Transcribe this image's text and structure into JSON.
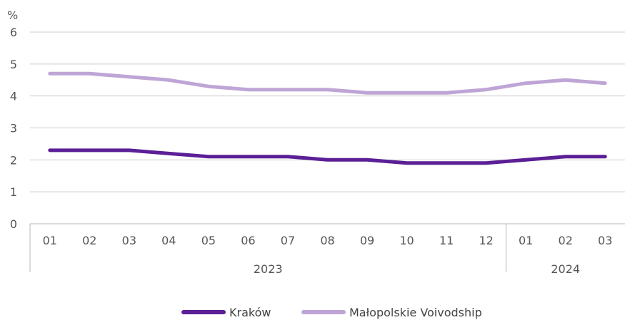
{
  "chart_data": {
    "type": "line",
    "unit_label": "%",
    "ylim": [
      0,
      6
    ],
    "yticks": [
      "0",
      "1",
      "2",
      "3",
      "4",
      "5",
      "6"
    ],
    "categories": [
      "01",
      "02",
      "03",
      "04",
      "05",
      "06",
      "07",
      "08",
      "09",
      "10",
      "11",
      "12",
      "01",
      "02",
      "03"
    ],
    "groups": [
      {
        "label": "2023",
        "count": 12
      },
      {
        "label": "2024",
        "count": 3
      }
    ],
    "grid": true,
    "legend_position": "bottom",
    "series": [
      {
        "name": "Kraków",
        "color": "#5b1f96",
        "values": [
          2.3,
          2.3,
          2.3,
          2.2,
          2.1,
          2.1,
          2.1,
          2.0,
          2.0,
          1.9,
          1.9,
          1.9,
          2.0,
          2.1,
          2.1
        ]
      },
      {
        "name": "Małopolskie Voivodship",
        "color": "#bea5d6",
        "values": [
          4.7,
          4.7,
          4.6,
          4.5,
          4.3,
          4.2,
          4.2,
          4.2,
          4.1,
          4.1,
          4.1,
          4.2,
          4.4,
          4.5,
          4.4
        ]
      }
    ]
  }
}
